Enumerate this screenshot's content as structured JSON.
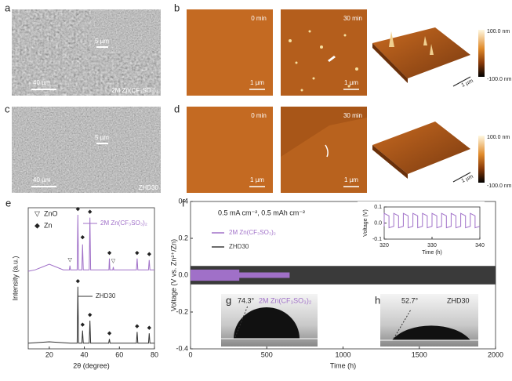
{
  "panels": {
    "a": {
      "label": "a",
      "scale": "40 µm",
      "inset_scale": "5 µm",
      "caption": "2M Zn(CF₃SO₃)₂"
    },
    "b": {
      "label": "b",
      "images": [
        {
          "time": "0 min",
          "scale": "1 µm"
        },
        {
          "time": "30 min",
          "scale": "1 µm"
        }
      ],
      "scale_3d": "1 µm",
      "colorbar": [
        "100.0 nm",
        "-100.0 nm"
      ]
    },
    "c": {
      "label": "c",
      "scale": "40 µm",
      "inset_scale": "5 µm",
      "caption": "ZHD30"
    },
    "d": {
      "label": "d",
      "images": [
        {
          "time": "0 min",
          "scale": "1 µm"
        },
        {
          "time": "30 min",
          "scale": "1 µm"
        }
      ],
      "scale_3d": "1 µm",
      "colorbar": [
        "100.0 nm",
        "-100.0 nm"
      ]
    },
    "g": {
      "label": "g",
      "angle": "74.3°",
      "caption": "2M Zn(CF₃SO₃)₂"
    },
    "h": {
      "label": "h",
      "angle": "52.7°",
      "caption": "ZHD30"
    }
  },
  "chart_data": [
    {
      "type": "line",
      "label": "e",
      "xlabel": "2θ (degree)",
      "ylabel": "Intensity (a.u.)",
      "xlim": [
        8,
        80
      ],
      "xticks": [
        20,
        40,
        60,
        80
      ],
      "ylim": [
        0,
        100
      ],
      "legend_symbols": [
        {
          "symbol": "▽",
          "name": "ZnO"
        },
        {
          "symbol": "◆",
          "name": "Zn"
        }
      ],
      "series": [
        {
          "name": "2M Zn(CF₃SO₃)₂",
          "color": "#a070c8",
          "x": [
            8,
            12,
            16,
            20,
            24,
            28,
            31.5,
            31.8,
            32.1,
            35.9,
            36.3,
            36.7,
            38.6,
            39.0,
            39.4,
            42.8,
            43.2,
            43.6,
            50,
            54.0,
            54.3,
            54.6,
            56.2,
            56.5,
            56.8,
            69.7,
            70.1,
            70.5,
            76.6,
            77.0,
            77.4,
            80
          ],
          "values": [
            55,
            56,
            58,
            60,
            58,
            56,
            56,
            59,
            56,
            56,
            95,
            56,
            56,
            74,
            56,
            56,
            93,
            56,
            56,
            56,
            64,
            56,
            56,
            58,
            56,
            56,
            64,
            56,
            56,
            63,
            56,
            56
          ]
        },
        {
          "name": "ZHD30",
          "color": "#333333",
          "x": [
            8,
            14,
            20,
            26,
            32,
            35.9,
            36.3,
            36.7,
            38.6,
            39.0,
            39.4,
            42.8,
            43.2,
            43.6,
            53.9,
            54.3,
            54.7,
            69.7,
            70.1,
            70.5,
            76.6,
            77.0,
            77.4,
            80
          ],
          "values": [
            4,
            4.5,
            5,
            4.5,
            4,
            4,
            44,
            4,
            4,
            13,
            4,
            4,
            20,
            4,
            4,
            7,
            4,
            4,
            12,
            4,
            4,
            11,
            4,
            4
          ]
        }
      ],
      "markers": [
        {
          "symbol": "◆",
          "x": 36.3,
          "y": 99
        },
        {
          "symbol": "◆",
          "x": 39.0,
          "y": 79
        },
        {
          "symbol": "◆",
          "x": 43.2,
          "y": 97
        },
        {
          "symbol": "◆",
          "x": 54.3,
          "y": 68
        },
        {
          "symbol": "◆",
          "x": 70.1,
          "y": 68
        },
        {
          "symbol": "◆",
          "x": 77.0,
          "y": 67
        },
        {
          "symbol": "▽",
          "x": 31.8,
          "y": 63
        },
        {
          "symbol": "▽",
          "x": 56.5,
          "y": 62
        },
        {
          "symbol": "◆",
          "x": 36.3,
          "y": 48
        },
        {
          "symbol": "◆",
          "x": 39.0,
          "y": 17
        },
        {
          "symbol": "◆",
          "x": 43.2,
          "y": 24
        },
        {
          "symbol": "◆",
          "x": 54.3,
          "y": 11
        },
        {
          "symbol": "◆",
          "x": 70.1,
          "y": 16
        },
        {
          "symbol": "◆",
          "x": 77.0,
          "y": 15
        }
      ]
    },
    {
      "type": "band",
      "label": "f",
      "xlabel": "Time (h)",
      "ylabel": "Voltage (V vs. Zn²⁺/Zn)",
      "annotation": "0.5 mA cm⁻², 0.5 mAh cm⁻²",
      "xlim": [
        0,
        2000
      ],
      "xticks": [
        0,
        500,
        1000,
        1500,
        2000
      ],
      "ylim": [
        -0.4,
        0.4
      ],
      "yticks": [
        -0.4,
        -0.2,
        {
          "value": 0,
          "label": "0.0"
        },
        0.2,
        0.4
      ],
      "series": [
        {
          "name": "2M Zn(CF₃SO₃)₂",
          "color": "#a070c8",
          "x": [
            0,
            320,
            320,
            650
          ],
          "upper": [
            0.03,
            0.03,
            0.015,
            0.015
          ],
          "lower": [
            -0.03,
            -0.03,
            -0.015,
            -0.015
          ]
        },
        {
          "name": "ZHD30",
          "color": "#3a3a3a",
          "x": [
            0,
            2000
          ],
          "upper": [
            0.05,
            0.05
          ],
          "lower": [
            -0.05,
            -0.05
          ]
        }
      ]
    },
    {
      "type": "line",
      "xlabel": "Time (h)",
      "ylabel": "Voltage (V)",
      "xlim": [
        320,
        340
      ],
      "xticks": [
        320,
        330,
        340
      ],
      "ylim": [
        -0.1,
        0.1
      ],
      "yticks": [
        -0.1,
        {
          "value": 0,
          "label": "0.0"
        },
        0.1
      ],
      "series": [
        {
          "color": "#a070c8",
          "x": [
            320,
            320,
            321,
            321,
            322,
            322,
            323,
            323,
            324,
            324,
            325,
            325,
            326,
            326,
            327,
            327,
            328,
            328,
            329,
            329,
            330,
            330,
            331,
            331,
            332,
            332,
            333,
            333,
            334,
            334,
            335,
            335,
            336,
            336,
            337,
            337,
            338,
            338,
            339,
            339,
            340
          ],
          "values": [
            -0.02,
            0.06,
            0.045,
            -0.03,
            -0.02,
            0.06,
            0.045,
            -0.03,
            -0.02,
            0.06,
            0.045,
            -0.03,
            -0.02,
            0.06,
            0.045,
            -0.03,
            -0.02,
            0.06,
            0.045,
            -0.03,
            -0.02,
            0.06,
            0.045,
            -0.03,
            -0.02,
            0.06,
            0.045,
            -0.03,
            -0.02,
            0.06,
            0.045,
            -0.03,
            -0.02,
            0.06,
            0.045,
            -0.03,
            -0.02,
            0.06,
            0.045,
            -0.03,
            -0.02
          ]
        }
      ]
    }
  ]
}
